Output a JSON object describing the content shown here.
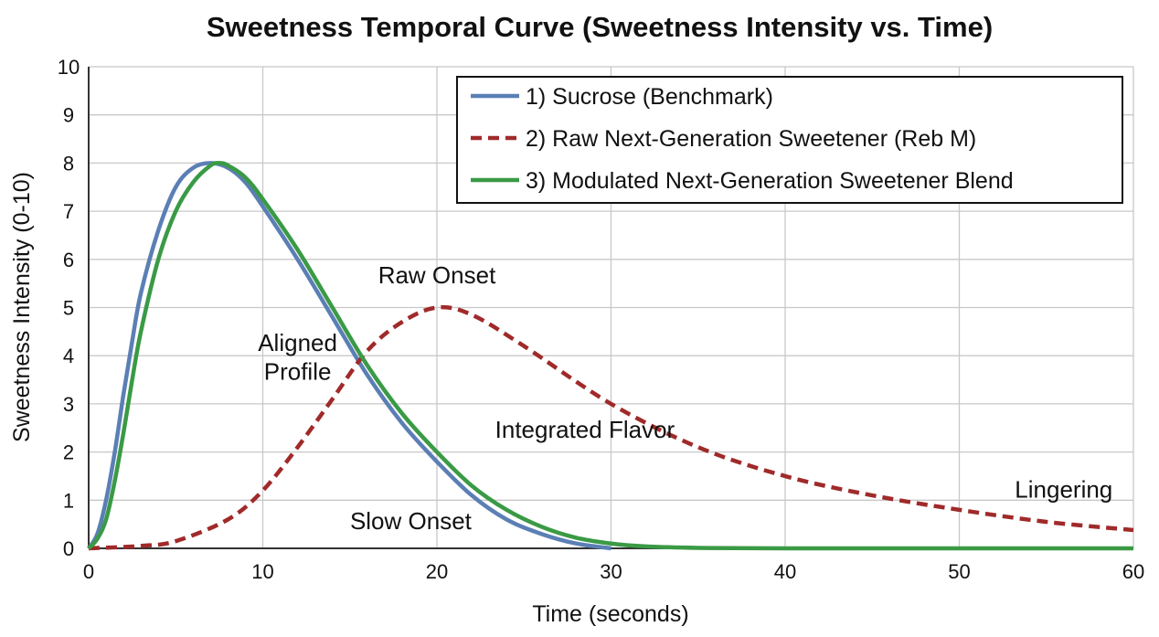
{
  "chart_data": {
    "type": "line",
    "title": "Sweetness Temporal Curve (Sweetness Intensity vs. Time)",
    "xlabel": "Time (seconds)",
    "ylabel": "Sweetness Intensity (0-10)",
    "xlim": [
      0,
      60
    ],
    "ylim": [
      0,
      10
    ],
    "xticks": [
      0,
      10,
      20,
      30,
      40,
      50,
      60
    ],
    "yticks": [
      0,
      1,
      2,
      3,
      4,
      5,
      6,
      7,
      8,
      9,
      10
    ],
    "grid": true,
    "legend_position": "top-right",
    "series": [
      {
        "name": "1) Sucrose (Benchmark)",
        "color": "#5b7fb5",
        "style": "solid",
        "x": [
          0,
          0.5,
          1,
          1.5,
          2,
          2.5,
          3,
          4,
          5,
          6,
          7,
          8,
          9,
          10,
          12,
          14,
          16,
          18,
          20,
          22,
          24,
          26,
          28,
          30
        ],
        "y": [
          0,
          0.3,
          1,
          2,
          3.2,
          4.3,
          5.3,
          6.6,
          7.5,
          7.9,
          8.0,
          7.9,
          7.6,
          7.1,
          6.0,
          4.8,
          3.6,
          2.6,
          1.8,
          1.1,
          0.6,
          0.3,
          0.1,
          0
        ]
      },
      {
        "name": "2) Raw Next-Generation Sweetener (Reb M)",
        "color": "#a02a2a",
        "style": "dashed",
        "x": [
          0,
          3,
          5,
          8,
          10,
          12,
          14,
          16,
          18,
          20,
          22,
          25,
          30,
          35,
          40,
          45,
          50,
          55,
          60
        ],
        "y": [
          0,
          0.05,
          0.15,
          0.6,
          1.2,
          2.1,
          3.1,
          4.1,
          4.7,
          5.0,
          4.85,
          4.2,
          3.0,
          2.1,
          1.5,
          1.1,
          0.8,
          0.55,
          0.38
        ]
      },
      {
        "name": "3) Modulated Next-Generation Sweetener Blend",
        "color": "#3a9a45",
        "style": "solid",
        "x": [
          0,
          0.5,
          1,
          1.5,
          2,
          2.5,
          3,
          4,
          5,
          6,
          7,
          7.5,
          8,
          9,
          10,
          12,
          14,
          16,
          18,
          20,
          22,
          24,
          26,
          28,
          30,
          32,
          35,
          40,
          50,
          60
        ],
        "y": [
          0,
          0.2,
          0.6,
          1.4,
          2.4,
          3.5,
          4.5,
          6.0,
          7.0,
          7.6,
          7.95,
          8.0,
          7.95,
          7.7,
          7.25,
          6.2,
          5.0,
          3.8,
          2.8,
          2.0,
          1.3,
          0.8,
          0.45,
          0.22,
          0.1,
          0.04,
          0.01,
          0,
          0,
          0
        ]
      }
    ],
    "annotations": [
      {
        "text": "Aligned",
        "x": 12,
        "y": 4.1
      },
      {
        "text": "Profile",
        "x": 12,
        "y": 3.5
      },
      {
        "text": "Raw Onset",
        "x": 20,
        "y": 5.5
      },
      {
        "text": "Slow Onset",
        "x": 18.5,
        "y": 0.4
      },
      {
        "text": "Integrated Flavor",
        "x": 28.5,
        "y": 2.3
      },
      {
        "text": "Lingering",
        "x": 56,
        "y": 1.05
      }
    ]
  }
}
